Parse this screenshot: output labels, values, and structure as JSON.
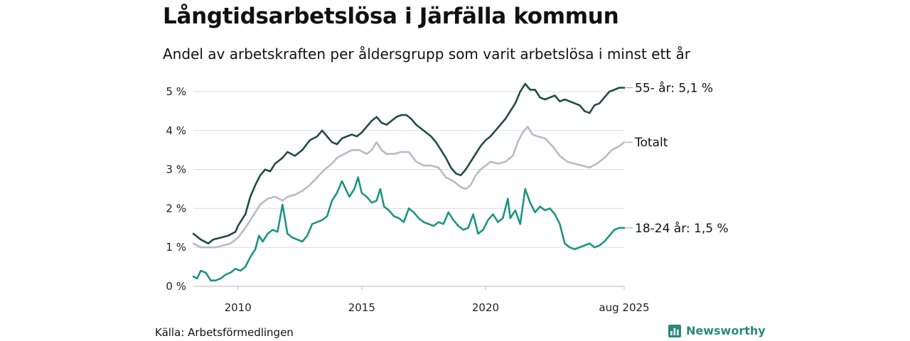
{
  "title": "Långtidsarbetslösa i Järfälla kommun",
  "subtitle": "Andel av arbetskraften per åldersgrupp som varit arbetslösa i minst ett år",
  "source": "Källa: Arbetsförmedlingen",
  "brand": {
    "name": "Newsworthy",
    "icon": "bar-chart-icon",
    "color": "#2a8a7b"
  },
  "chart_data": {
    "type": "line",
    "x_range": [
      2008.2,
      2025.6
    ],
    "y_range": [
      0,
      5
    ],
    "grid": true,
    "y_ticks": [
      {
        "value": 0,
        "label": "0 %"
      },
      {
        "value": 1,
        "label": "1 %"
      },
      {
        "value": 2,
        "label": "2 %"
      },
      {
        "value": 3,
        "label": "3 %"
      },
      {
        "value": 4,
        "label": "4 %"
      },
      {
        "value": 5,
        "label": "5 %"
      }
    ],
    "x_ticks": [
      {
        "value": 2010,
        "label": "2010"
      },
      {
        "value": 2015,
        "label": "2015"
      },
      {
        "value": 2020,
        "label": "2020"
      },
      {
        "value": 2025.6,
        "label": "aug 2025"
      }
    ],
    "series": [
      {
        "name": "55- år",
        "end_label": "55- år: 5,1 %",
        "color": "#1f4d42",
        "points": [
          [
            2008.2,
            1.35
          ],
          [
            2008.5,
            1.2
          ],
          [
            2008.8,
            1.1
          ],
          [
            2009.0,
            1.2
          ],
          [
            2009.3,
            1.25
          ],
          [
            2009.6,
            1.3
          ],
          [
            2009.9,
            1.4
          ],
          [
            2010.0,
            1.55
          ],
          [
            2010.3,
            1.85
          ],
          [
            2010.5,
            2.3
          ],
          [
            2010.7,
            2.6
          ],
          [
            2010.9,
            2.85
          ],
          [
            2011.1,
            3.0
          ],
          [
            2011.3,
            2.95
          ],
          [
            2011.5,
            3.15
          ],
          [
            2011.8,
            3.3
          ],
          [
            2012.0,
            3.45
          ],
          [
            2012.3,
            3.35
          ],
          [
            2012.6,
            3.5
          ],
          [
            2012.9,
            3.75
          ],
          [
            2013.2,
            3.85
          ],
          [
            2013.4,
            4.0
          ],
          [
            2013.6,
            3.85
          ],
          [
            2013.8,
            3.7
          ],
          [
            2014.0,
            3.65
          ],
          [
            2014.2,
            3.8
          ],
          [
            2014.4,
            3.85
          ],
          [
            2014.6,
            3.9
          ],
          [
            2014.8,
            3.85
          ],
          [
            2015.0,
            3.95
          ],
          [
            2015.2,
            4.1
          ],
          [
            2015.4,
            4.25
          ],
          [
            2015.6,
            4.35
          ],
          [
            2015.8,
            4.2
          ],
          [
            2016.0,
            4.15
          ],
          [
            2016.2,
            4.25
          ],
          [
            2016.4,
            4.35
          ],
          [
            2016.6,
            4.4
          ],
          [
            2016.8,
            4.4
          ],
          [
            2017.0,
            4.3
          ],
          [
            2017.2,
            4.15
          ],
          [
            2017.4,
            4.05
          ],
          [
            2017.6,
            3.95
          ],
          [
            2017.8,
            3.85
          ],
          [
            2018.0,
            3.7
          ],
          [
            2018.2,
            3.5
          ],
          [
            2018.4,
            3.3
          ],
          [
            2018.6,
            3.05
          ],
          [
            2018.8,
            2.9
          ],
          [
            2019.0,
            2.85
          ],
          [
            2019.2,
            3.0
          ],
          [
            2019.4,
            3.2
          ],
          [
            2019.6,
            3.4
          ],
          [
            2019.8,
            3.6
          ],
          [
            2020.0,
            3.75
          ],
          [
            2020.2,
            3.85
          ],
          [
            2020.4,
            4.0
          ],
          [
            2020.6,
            4.15
          ],
          [
            2020.8,
            4.3
          ],
          [
            2021.0,
            4.5
          ],
          [
            2021.2,
            4.7
          ],
          [
            2021.4,
            5.0
          ],
          [
            2021.6,
            5.2
          ],
          [
            2021.8,
            5.05
          ],
          [
            2022.0,
            5.05
          ],
          [
            2022.2,
            4.85
          ],
          [
            2022.4,
            4.8
          ],
          [
            2022.6,
            4.85
          ],
          [
            2022.8,
            4.9
          ],
          [
            2023.0,
            4.75
          ],
          [
            2023.2,
            4.8
          ],
          [
            2023.4,
            4.75
          ],
          [
            2023.6,
            4.7
          ],
          [
            2023.8,
            4.65
          ],
          [
            2024.0,
            4.5
          ],
          [
            2024.2,
            4.45
          ],
          [
            2024.4,
            4.65
          ],
          [
            2024.6,
            4.7
          ],
          [
            2024.8,
            4.85
          ],
          [
            2025.0,
            5.0
          ],
          [
            2025.2,
            5.05
          ],
          [
            2025.4,
            5.1
          ],
          [
            2025.6,
            5.1
          ]
        ]
      },
      {
        "name": "Totalt",
        "end_label": "Totalt",
        "color": "#bdb8c8",
        "points": [
          [
            2008.2,
            1.1
          ],
          [
            2008.5,
            1.0
          ],
          [
            2008.8,
            1.0
          ],
          [
            2009.1,
            1.0
          ],
          [
            2009.4,
            1.05
          ],
          [
            2009.7,
            1.1
          ],
          [
            2010.0,
            1.25
          ],
          [
            2010.3,
            1.5
          ],
          [
            2010.6,
            1.8
          ],
          [
            2010.9,
            2.1
          ],
          [
            2011.2,
            2.25
          ],
          [
            2011.5,
            2.3
          ],
          [
            2011.8,
            2.2
          ],
          [
            2012.0,
            2.3
          ],
          [
            2012.3,
            2.35
          ],
          [
            2012.6,
            2.45
          ],
          [
            2012.9,
            2.6
          ],
          [
            2013.2,
            2.8
          ],
          [
            2013.5,
            3.0
          ],
          [
            2013.8,
            3.15
          ],
          [
            2014.0,
            3.3
          ],
          [
            2014.3,
            3.4
          ],
          [
            2014.6,
            3.5
          ],
          [
            2014.9,
            3.5
          ],
          [
            2015.2,
            3.4
          ],
          [
            2015.4,
            3.5
          ],
          [
            2015.6,
            3.7
          ],
          [
            2015.8,
            3.5
          ],
          [
            2016.0,
            3.4
          ],
          [
            2016.3,
            3.4
          ],
          [
            2016.6,
            3.45
          ],
          [
            2016.9,
            3.45
          ],
          [
            2017.2,
            3.2
          ],
          [
            2017.5,
            3.1
          ],
          [
            2017.8,
            3.1
          ],
          [
            2018.1,
            3.05
          ],
          [
            2018.4,
            2.8
          ],
          [
            2018.7,
            2.7
          ],
          [
            2019.0,
            2.55
          ],
          [
            2019.2,
            2.5
          ],
          [
            2019.4,
            2.6
          ],
          [
            2019.6,
            2.85
          ],
          [
            2019.8,
            3.0
          ],
          [
            2020.0,
            3.1
          ],
          [
            2020.2,
            3.2
          ],
          [
            2020.5,
            3.15
          ],
          [
            2020.8,
            3.2
          ],
          [
            2021.1,
            3.35
          ],
          [
            2021.3,
            3.7
          ],
          [
            2021.5,
            3.95
          ],
          [
            2021.7,
            4.1
          ],
          [
            2021.9,
            3.9
          ],
          [
            2022.1,
            3.85
          ],
          [
            2022.4,
            3.8
          ],
          [
            2022.7,
            3.6
          ],
          [
            2023.0,
            3.35
          ],
          [
            2023.3,
            3.2
          ],
          [
            2023.6,
            3.15
          ],
          [
            2023.9,
            3.1
          ],
          [
            2024.2,
            3.05
          ],
          [
            2024.5,
            3.15
          ],
          [
            2024.8,
            3.3
          ],
          [
            2025.1,
            3.5
          ],
          [
            2025.4,
            3.6
          ],
          [
            2025.6,
            3.7
          ]
        ]
      },
      {
        "name": "18-24 år",
        "end_label": "18-24 år: 1,5 %",
        "color": "#1e9483",
        "points": [
          [
            2008.2,
            0.25
          ],
          [
            2008.35,
            0.2
          ],
          [
            2008.5,
            0.4
          ],
          [
            2008.7,
            0.35
          ],
          [
            2008.9,
            0.15
          ],
          [
            2009.1,
            0.15
          ],
          [
            2009.3,
            0.2
          ],
          [
            2009.5,
            0.3
          ],
          [
            2009.7,
            0.35
          ],
          [
            2009.9,
            0.45
          ],
          [
            2010.1,
            0.4
          ],
          [
            2010.3,
            0.5
          ],
          [
            2010.5,
            0.75
          ],
          [
            2010.7,
            0.95
          ],
          [
            2010.85,
            1.3
          ],
          [
            2011.0,
            1.15
          ],
          [
            2011.2,
            1.35
          ],
          [
            2011.4,
            1.45
          ],
          [
            2011.6,
            1.4
          ],
          [
            2011.8,
            2.1
          ],
          [
            2012.0,
            1.35
          ],
          [
            2012.2,
            1.25
          ],
          [
            2012.4,
            1.2
          ],
          [
            2012.6,
            1.15
          ],
          [
            2012.8,
            1.3
          ],
          [
            2013.0,
            1.6
          ],
          [
            2013.2,
            1.65
          ],
          [
            2013.4,
            1.7
          ],
          [
            2013.6,
            1.8
          ],
          [
            2013.8,
            2.2
          ],
          [
            2014.0,
            2.4
          ],
          [
            2014.2,
            2.7
          ],
          [
            2014.35,
            2.5
          ],
          [
            2014.5,
            2.3
          ],
          [
            2014.7,
            2.5
          ],
          [
            2014.85,
            2.8
          ],
          [
            2015.0,
            2.4
          ],
          [
            2015.2,
            2.3
          ],
          [
            2015.4,
            2.15
          ],
          [
            2015.6,
            2.2
          ],
          [
            2015.75,
            2.5
          ],
          [
            2015.9,
            2.05
          ],
          [
            2016.1,
            1.95
          ],
          [
            2016.3,
            1.8
          ],
          [
            2016.5,
            1.75
          ],
          [
            2016.7,
            1.65
          ],
          [
            2016.9,
            2.0
          ],
          [
            2017.1,
            1.9
          ],
          [
            2017.3,
            1.75
          ],
          [
            2017.5,
            1.65
          ],
          [
            2017.7,
            1.6
          ],
          [
            2017.9,
            1.55
          ],
          [
            2018.1,
            1.65
          ],
          [
            2018.3,
            1.6
          ],
          [
            2018.5,
            1.9
          ],
          [
            2018.7,
            1.7
          ],
          [
            2018.9,
            1.55
          ],
          [
            2019.1,
            1.45
          ],
          [
            2019.3,
            1.5
          ],
          [
            2019.5,
            1.85
          ],
          [
            2019.7,
            1.35
          ],
          [
            2019.9,
            1.45
          ],
          [
            2020.1,
            1.7
          ],
          [
            2020.3,
            1.85
          ],
          [
            2020.5,
            1.65
          ],
          [
            2020.7,
            1.75
          ],
          [
            2020.9,
            2.25
          ],
          [
            2021.0,
            1.75
          ],
          [
            2021.2,
            1.95
          ],
          [
            2021.4,
            1.6
          ],
          [
            2021.6,
            2.5
          ],
          [
            2021.8,
            2.15
          ],
          [
            2022.0,
            1.9
          ],
          [
            2022.2,
            2.05
          ],
          [
            2022.4,
            1.95
          ],
          [
            2022.6,
            2.0
          ],
          [
            2022.8,
            1.85
          ],
          [
            2023.0,
            1.6
          ],
          [
            2023.2,
            1.1
          ],
          [
            2023.4,
            1.0
          ],
          [
            2023.6,
            0.95
          ],
          [
            2023.8,
            1.0
          ],
          [
            2024.0,
            1.05
          ],
          [
            2024.2,
            1.1
          ],
          [
            2024.4,
            1.0
          ],
          [
            2024.6,
            1.05
          ],
          [
            2024.8,
            1.15
          ],
          [
            2025.0,
            1.3
          ],
          [
            2025.2,
            1.45
          ],
          [
            2025.4,
            1.5
          ],
          [
            2025.6,
            1.5
          ]
        ]
      }
    ]
  }
}
